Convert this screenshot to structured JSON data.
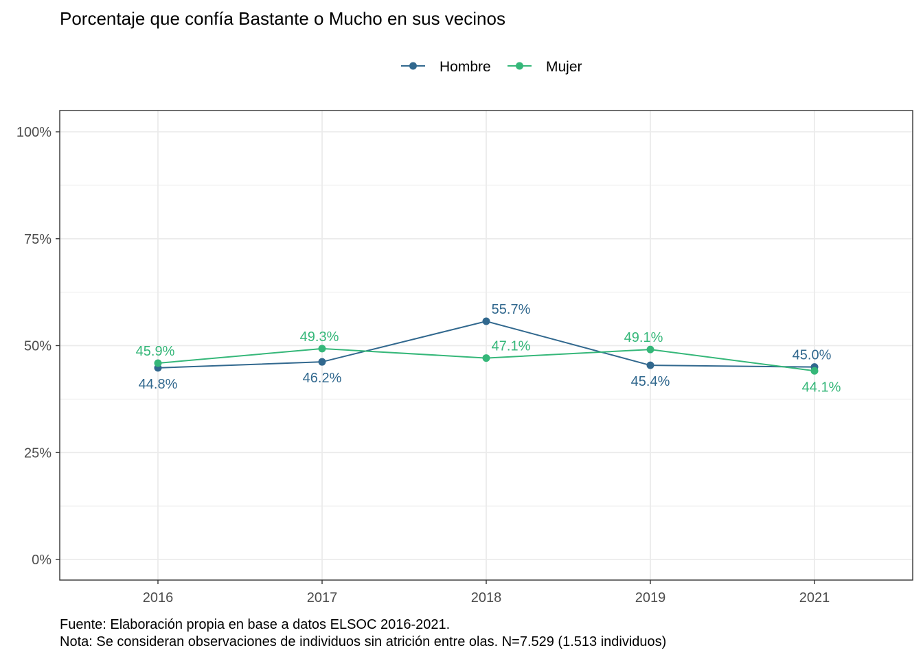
{
  "chart_data": {
    "type": "line",
    "title": "Porcentaje que confía Bastante o Mucho en sus vecinos",
    "xlabel": "",
    "ylabel": "",
    "categories": [
      "2016",
      "2017",
      "2018",
      "2019",
      "2021"
    ],
    "ylim": [
      0,
      100
    ],
    "y_ticks": [
      "0%",
      "25%",
      "50%",
      "75%",
      "100%"
    ],
    "grid": true,
    "legend_position": "top",
    "series": [
      {
        "name": "Hombre",
        "color": "#31688E",
        "values": [
          44.8,
          46.2,
          55.7,
          45.4,
          45.0
        ],
        "labels": [
          "44.8%",
          "46.2%",
          "55.7%",
          "45.4%",
          "45.0%"
        ]
      },
      {
        "name": "Mujer",
        "color": "#35B779",
        "values": [
          45.9,
          49.3,
          47.1,
          49.1,
          44.1
        ],
        "labels": [
          "45.9%",
          "49.3%",
          "47.1%",
          "49.1%",
          "44.1%"
        ]
      }
    ],
    "caption": [
      "Fuente: Elaboración propia en base a datos ELSOC 2016-2021.",
      "Nota: Se consideran observaciones de individuos sin atrición entre olas. N=7.529 (1.513 individuos)"
    ]
  }
}
